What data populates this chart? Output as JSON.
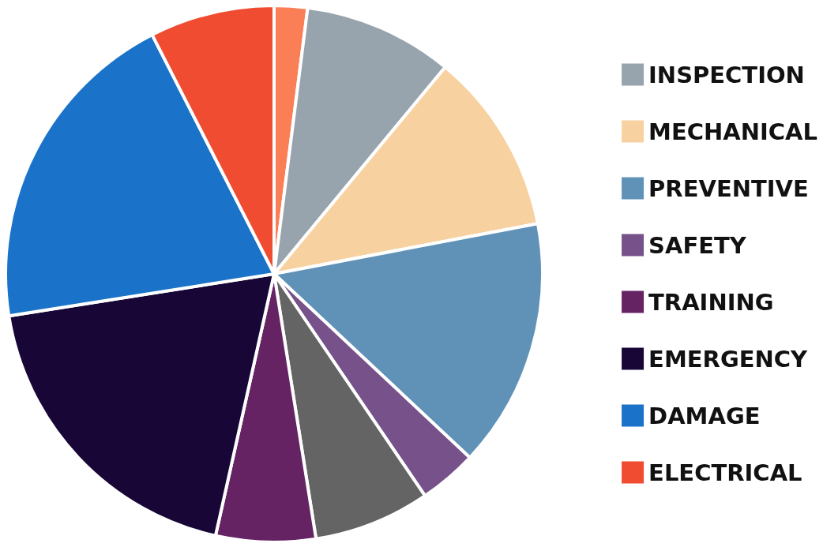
{
  "chart_data": {
    "type": "pie",
    "categories": [
      null,
      "INSPECTION",
      "MECHANICAL",
      "PREVENTIVE",
      "SAFETY",
      null,
      "TRAINING",
      "EMERGENCY",
      "DAMAGE",
      "ELECTRICAL"
    ],
    "values": [
      2,
      9,
      11,
      15,
      3.5,
      7,
      6,
      19,
      20,
      7.5
    ],
    "colors": [
      "#fa7f56",
      "#97a4ae",
      "#f7d1a0",
      "#6092b8",
      "#77518a",
      "#646464",
      "#652363",
      "#180736",
      "#1a73c8",
      "#f04c32"
    ],
    "legend": "right"
  }
}
